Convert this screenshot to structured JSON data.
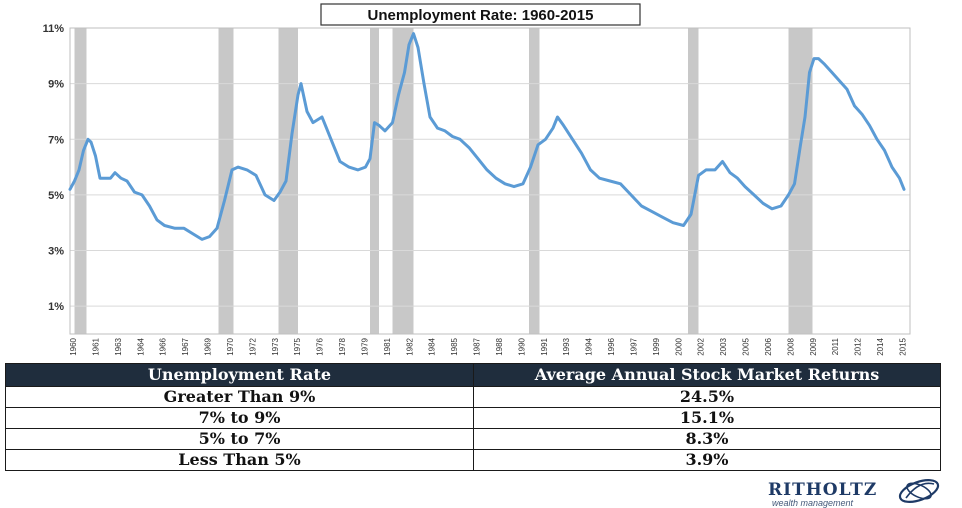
{
  "chart_data": {
    "type": "line",
    "title": "Unemployment Rate: 1960-2015",
    "xlabel": "",
    "ylabel": "",
    "ylim": [
      0,
      11
    ],
    "y_ticks": [
      "1%",
      "3%",
      "5%",
      "7%",
      "9%",
      "11%"
    ],
    "y_tick_values": [
      1,
      3,
      5,
      7,
      9,
      11
    ],
    "x_tick_labels": [
      "1960",
      "1961",
      "1963",
      "1964",
      "1966",
      "1967",
      "1969",
      "1970",
      "1972",
      "1973",
      "1975",
      "1976",
      "1978",
      "1979",
      "1981",
      "1982",
      "1984",
      "1985",
      "1987",
      "1988",
      "1990",
      "1991",
      "1993",
      "1994",
      "1996",
      "1997",
      "1999",
      "2000",
      "2002",
      "2003",
      "2005",
      "2006",
      "2008",
      "2009",
      "2011",
      "2012",
      "2014",
      "2015"
    ],
    "xlim": [
      1960.0,
      2016.0
    ],
    "grid": true,
    "recessions": [
      [
        1960.3,
        1961.1
      ],
      [
        1969.9,
        1970.9
      ],
      [
        1973.9,
        1975.2
      ],
      [
        1980.0,
        1980.6
      ],
      [
        1981.5,
        1982.9
      ],
      [
        1990.6,
        1991.3
      ],
      [
        2001.2,
        2001.9
      ],
      [
        2007.9,
        2009.5
      ]
    ],
    "series": [
      {
        "color": "#5b9bd5",
        "x": [
          1960.0,
          1960.3,
          1960.6,
          1960.9,
          1961.2,
          1961.4,
          1961.7,
          1962.0,
          1962.3,
          1962.7,
          1963.0,
          1963.4,
          1963.8,
          1964.3,
          1964.8,
          1965.3,
          1965.8,
          1966.3,
          1967.0,
          1967.6,
          1968.2,
          1968.8,
          1969.3,
          1969.8,
          1970.3,
          1970.8,
          1971.2,
          1971.8,
          1972.4,
          1973.0,
          1973.6,
          1974.0,
          1974.4,
          1974.8,
          1975.2,
          1975.4,
          1975.8,
          1976.2,
          1976.8,
          1977.4,
          1978.0,
          1978.6,
          1979.2,
          1979.7,
          1980.0,
          1980.3,
          1980.6,
          1981.0,
          1981.5,
          1981.9,
          1982.3,
          1982.6,
          1982.9,
          1983.2,
          1983.6,
          1984.0,
          1984.5,
          1985.0,
          1985.5,
          1986.0,
          1986.6,
          1987.2,
          1987.8,
          1988.4,
          1989.0,
          1989.6,
          1990.2,
          1990.7,
          1991.2,
          1991.7,
          1992.2,
          1992.5,
          1992.9,
          1993.5,
          1994.1,
          1994.7,
          1995.3,
          1996.0,
          1996.7,
          1997.4,
          1998.1,
          1998.8,
          1999.5,
          2000.2,
          2000.9,
          2001.4,
          2001.9,
          2002.4,
          2003.0,
          2003.5,
          2004.0,
          2004.5,
          2005.0,
          2005.6,
          2006.2,
          2006.8,
          2007.4,
          2007.9,
          2008.3,
          2008.7,
          2009.0,
          2009.3,
          2009.6,
          2009.9,
          2010.3,
          2010.8,
          2011.3,
          2011.8,
          2012.3,
          2012.8,
          2013.3,
          2013.8,
          2014.3,
          2014.8,
          2015.3,
          2015.6
        ],
        "values": [
          5.2,
          5.5,
          5.9,
          6.6,
          7.0,
          6.9,
          6.4,
          5.6,
          5.6,
          5.6,
          5.8,
          5.6,
          5.5,
          5.1,
          5.0,
          4.6,
          4.1,
          3.9,
          3.8,
          3.8,
          3.6,
          3.4,
          3.5,
          3.8,
          4.8,
          5.9,
          6.0,
          5.9,
          5.7,
          5.0,
          4.8,
          5.1,
          5.5,
          7.2,
          8.6,
          9.0,
          8.0,
          7.6,
          7.8,
          7.0,
          6.2,
          6.0,
          5.9,
          6.0,
          6.3,
          7.6,
          7.5,
          7.3,
          7.6,
          8.6,
          9.4,
          10.4,
          10.8,
          10.3,
          9.0,
          7.8,
          7.4,
          7.3,
          7.1,
          7.0,
          6.7,
          6.3,
          5.9,
          5.6,
          5.4,
          5.3,
          5.4,
          6.0,
          6.8,
          7.0,
          7.4,
          7.8,
          7.5,
          7.0,
          6.5,
          5.9,
          5.6,
          5.5,
          5.4,
          5.0,
          4.6,
          4.4,
          4.2,
          4.0,
          3.9,
          4.3,
          5.7,
          5.9,
          5.9,
          6.2,
          5.8,
          5.6,
          5.3,
          5.0,
          4.7,
          4.5,
          4.6,
          5.0,
          5.4,
          6.8,
          7.8,
          9.4,
          9.9,
          9.9,
          9.7,
          9.4,
          9.1,
          8.8,
          8.2,
          7.9,
          7.5,
          7.0,
          6.6,
          6.0,
          5.6,
          5.2
        ]
      }
    ]
  },
  "table": {
    "headers": [
      "Unemployment Rate",
      "Average Annual Stock Market Returns"
    ],
    "rows": [
      [
        "Greater Than 9%",
        "24.5%"
      ],
      [
        "7% to 9%",
        "15.1%"
      ],
      [
        "5% to 7%",
        "8.3%"
      ],
      [
        "Less Than 5%",
        "3.9%"
      ]
    ]
  },
  "logo": {
    "name": "RITHOLTZ",
    "tagline": "wealth management"
  },
  "colors": {
    "line": "#5b9bd5",
    "recession": "#c8c8c8",
    "header_bg": "#1f2d3d",
    "logo": "#1e3a66"
  }
}
